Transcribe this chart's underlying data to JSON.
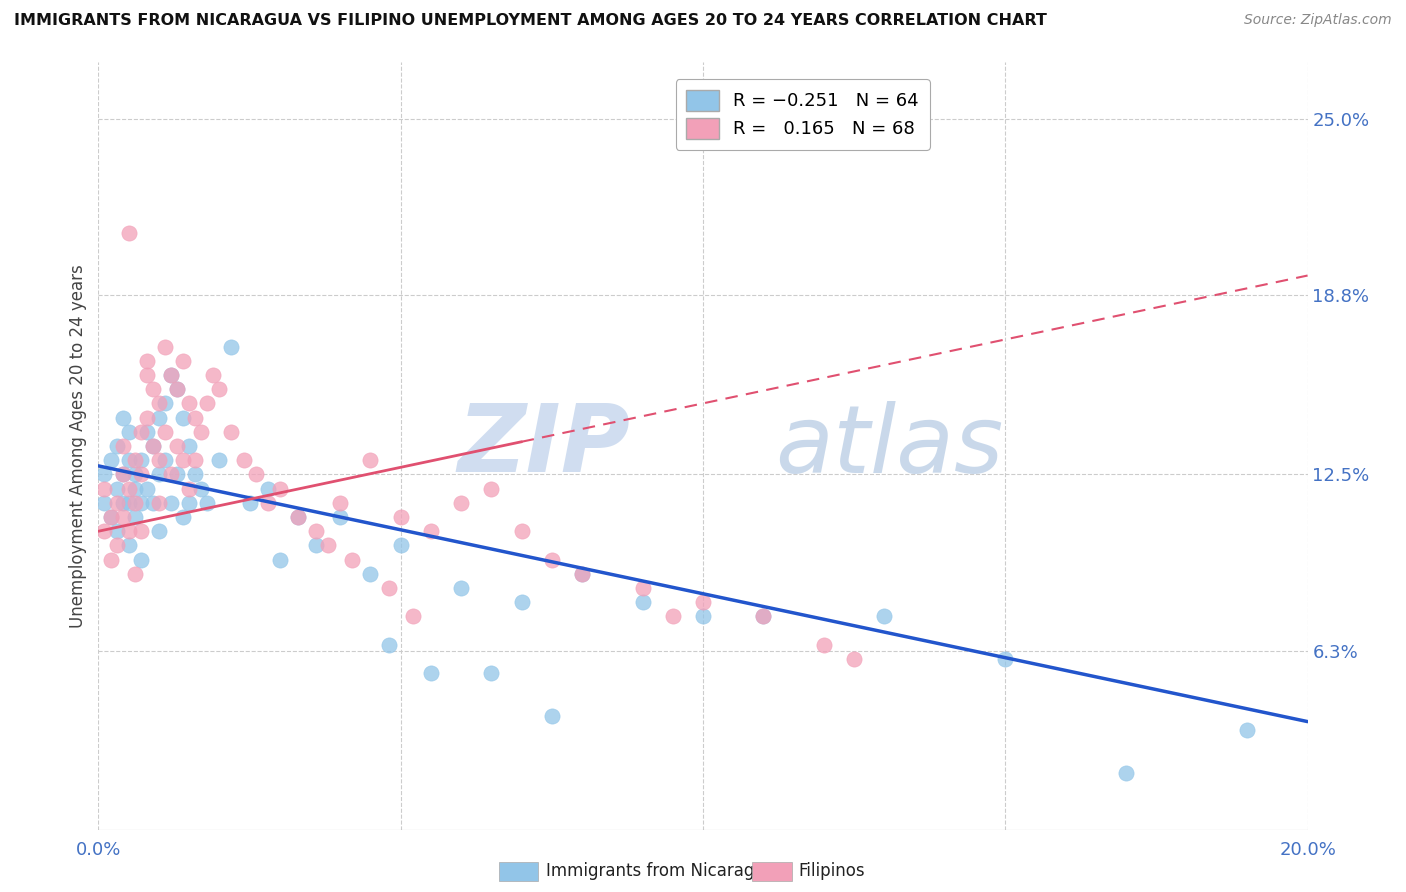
{
  "title": "IMMIGRANTS FROM NICARAGUA VS FILIPINO UNEMPLOYMENT AMONG AGES 20 TO 24 YEARS CORRELATION CHART",
  "source": "Source: ZipAtlas.com",
  "ylabel": "Unemployment Among Ages 20 to 24 years",
  "xlim": [
    0.0,
    0.2
  ],
  "ylim": [
    0.0,
    0.27
  ],
  "xticks": [
    0.0,
    0.05,
    0.1,
    0.15,
    0.2
  ],
  "xticklabels": [
    "0.0%",
    "",
    "",
    "",
    "20.0%"
  ],
  "yticks_right": [
    0.063,
    0.125,
    0.188,
    0.25
  ],
  "yticklabels_right": [
    "6.3%",
    "12.5%",
    "18.8%",
    "25.0%"
  ],
  "color_nicaragua": "#92C5E8",
  "color_filipino": "#F2A0B8",
  "color_line_nicaragua": "#2255CC",
  "color_line_filipino": "#E05070",
  "nic_line_x0": 0.0,
  "nic_line_y0": 0.128,
  "nic_line_x1": 0.2,
  "nic_line_y1": 0.038,
  "fil_line_x0": 0.0,
  "fil_line_y0": 0.105,
  "fil_line_x1": 0.2,
  "fil_line_y1": 0.195,
  "scatter_nicaragua_x": [
    0.001,
    0.001,
    0.002,
    0.002,
    0.003,
    0.003,
    0.003,
    0.004,
    0.004,
    0.004,
    0.005,
    0.005,
    0.005,
    0.005,
    0.006,
    0.006,
    0.006,
    0.007,
    0.007,
    0.007,
    0.008,
    0.008,
    0.009,
    0.009,
    0.01,
    0.01,
    0.01,
    0.011,
    0.011,
    0.012,
    0.012,
    0.013,
    0.013,
    0.014,
    0.014,
    0.015,
    0.015,
    0.016,
    0.017,
    0.018,
    0.02,
    0.022,
    0.025,
    0.028,
    0.03,
    0.033,
    0.036,
    0.04,
    0.045,
    0.05,
    0.06,
    0.07,
    0.08,
    0.09,
    0.1,
    0.11,
    0.13,
    0.15,
    0.17,
    0.19,
    0.048,
    0.055,
    0.065,
    0.075
  ],
  "scatter_nicaragua_y": [
    0.115,
    0.125,
    0.11,
    0.13,
    0.12,
    0.105,
    0.135,
    0.125,
    0.115,
    0.145,
    0.13,
    0.115,
    0.1,
    0.14,
    0.125,
    0.11,
    0.12,
    0.13,
    0.115,
    0.095,
    0.14,
    0.12,
    0.135,
    0.115,
    0.145,
    0.125,
    0.105,
    0.15,
    0.13,
    0.16,
    0.115,
    0.155,
    0.125,
    0.145,
    0.11,
    0.135,
    0.115,
    0.125,
    0.12,
    0.115,
    0.13,
    0.17,
    0.115,
    0.12,
    0.095,
    0.11,
    0.1,
    0.11,
    0.09,
    0.1,
    0.085,
    0.08,
    0.09,
    0.08,
    0.075,
    0.075,
    0.075,
    0.06,
    0.02,
    0.035,
    0.065,
    0.055,
    0.055,
    0.04
  ],
  "scatter_filipino_x": [
    0.001,
    0.001,
    0.002,
    0.002,
    0.003,
    0.003,
    0.004,
    0.004,
    0.004,
    0.005,
    0.005,
    0.005,
    0.006,
    0.006,
    0.006,
    0.007,
    0.007,
    0.007,
    0.008,
    0.008,
    0.008,
    0.009,
    0.009,
    0.01,
    0.01,
    0.01,
    0.011,
    0.011,
    0.012,
    0.012,
    0.013,
    0.013,
    0.014,
    0.014,
    0.015,
    0.015,
    0.016,
    0.016,
    0.017,
    0.018,
    0.019,
    0.02,
    0.022,
    0.024,
    0.026,
    0.028,
    0.03,
    0.033,
    0.036,
    0.04,
    0.045,
    0.05,
    0.055,
    0.06,
    0.065,
    0.07,
    0.075,
    0.08,
    0.09,
    0.095,
    0.1,
    0.11,
    0.12,
    0.125,
    0.038,
    0.042,
    0.048,
    0.052
  ],
  "scatter_filipino_y": [
    0.105,
    0.12,
    0.11,
    0.095,
    0.115,
    0.1,
    0.125,
    0.11,
    0.135,
    0.21,
    0.12,
    0.105,
    0.13,
    0.115,
    0.09,
    0.14,
    0.125,
    0.105,
    0.16,
    0.145,
    0.165,
    0.135,
    0.155,
    0.15,
    0.13,
    0.115,
    0.17,
    0.14,
    0.16,
    0.125,
    0.155,
    0.135,
    0.165,
    0.13,
    0.15,
    0.12,
    0.145,
    0.13,
    0.14,
    0.15,
    0.16,
    0.155,
    0.14,
    0.13,
    0.125,
    0.115,
    0.12,
    0.11,
    0.105,
    0.115,
    0.13,
    0.11,
    0.105,
    0.115,
    0.12,
    0.105,
    0.095,
    0.09,
    0.085,
    0.075,
    0.08,
    0.075,
    0.065,
    0.06,
    0.1,
    0.095,
    0.085,
    0.075
  ]
}
